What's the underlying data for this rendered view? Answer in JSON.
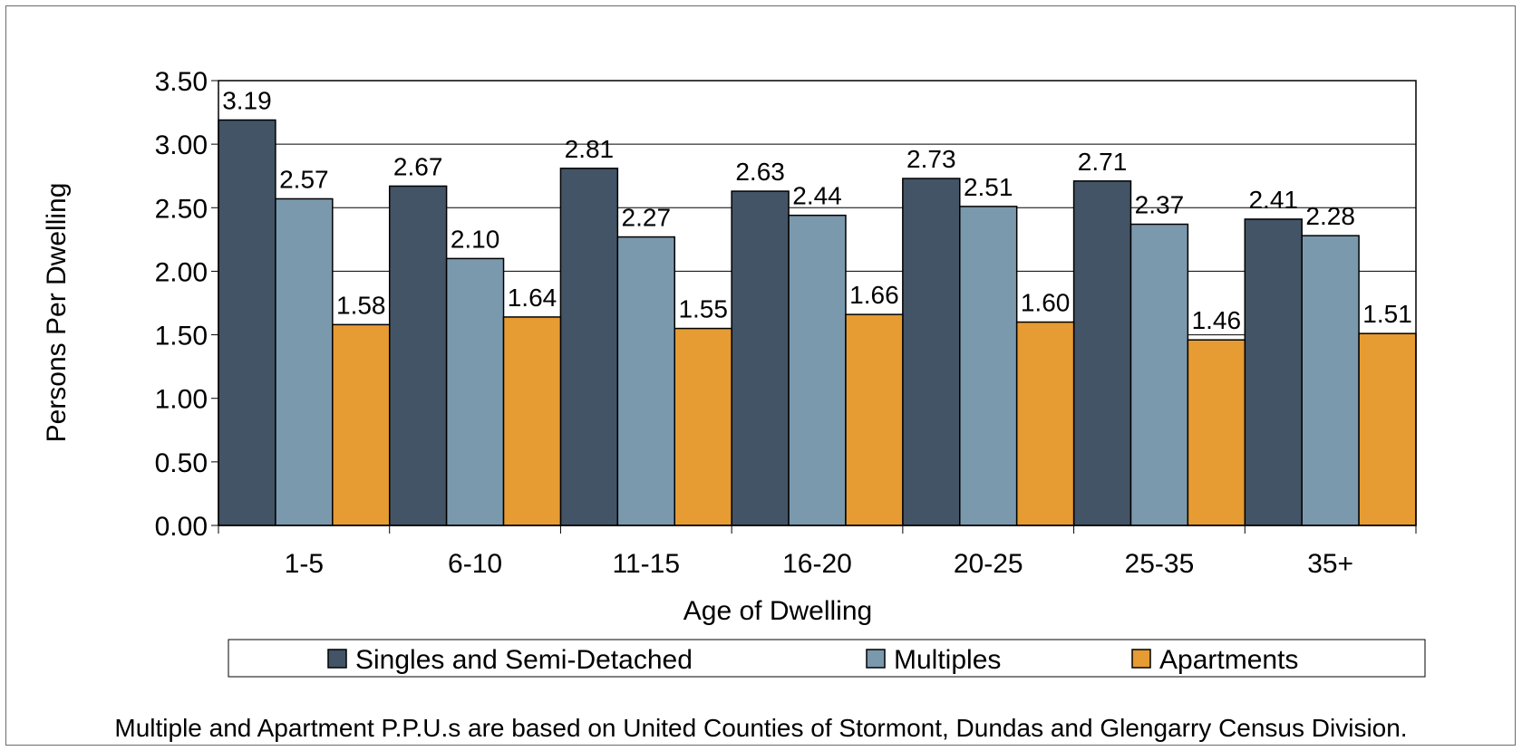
{
  "chart_data": {
    "type": "bar",
    "ylabel": "Persons Per Dwelling",
    "xlabel": "Age of Dwelling",
    "categories": [
      "1-5",
      "6-10",
      "11-15",
      "16-20",
      "20-25",
      "25-35",
      "35+"
    ],
    "ylim": [
      0,
      3.5
    ],
    "yticks": [
      "0.00",
      "0.50",
      "1.00",
      "1.50",
      "2.00",
      "2.50",
      "3.00",
      "3.50"
    ],
    "grid": true,
    "legend_position": "bottom",
    "series": [
      {
        "name": "Singles and Semi-Detached",
        "color": "#435466",
        "values": [
          3.19,
          2.67,
          2.81,
          2.63,
          2.73,
          2.71,
          2.41
        ],
        "labels": [
          "3.19",
          "2.67",
          "2.81",
          "2.63",
          "2.73",
          "2.71",
          "2.41"
        ]
      },
      {
        "name": "Multiples",
        "color": "#7b99ad",
        "values": [
          2.57,
          2.1,
          2.27,
          2.44,
          2.51,
          2.37,
          2.28
        ],
        "labels": [
          "2.57",
          "2.10",
          "2.27",
          "2.44",
          "2.51",
          "2.37",
          "2.28"
        ]
      },
      {
        "name": "Apartments",
        "color": "#e69b33",
        "values": [
          1.58,
          1.64,
          1.55,
          1.66,
          1.6,
          1.46,
          1.51
        ],
        "labels": [
          "1.58",
          "1.64",
          "1.55",
          "1.66",
          "1.60",
          "1.46",
          "1.51"
        ]
      }
    ]
  },
  "footnote": "Multiple and Apartment P.P.U.s are based on United Counties of Stormont, Dundas and Glengarry Census Division."
}
